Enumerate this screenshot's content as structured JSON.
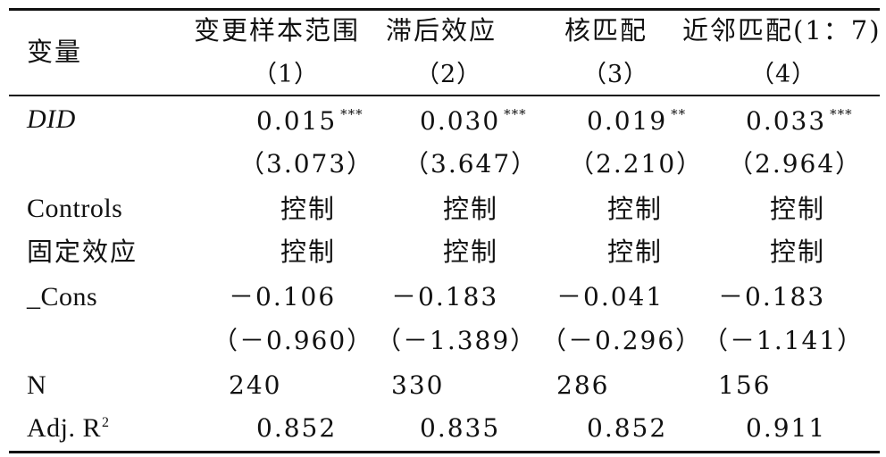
{
  "header": {
    "variable_label": "变量",
    "columns": [
      {
        "title": "变更样本范围",
        "number": "（1）"
      },
      {
        "title": "滞后效应",
        "number": "（2）"
      },
      {
        "title": "核匹配",
        "number": "（3）"
      },
      {
        "title": "近邻匹配(1：7)",
        "number": "（4）"
      }
    ]
  },
  "rows": {
    "did": {
      "label": "DID",
      "coefs": [
        {
          "value": "0.015",
          "stars": "***"
        },
        {
          "value": "0.030",
          "stars": "***"
        },
        {
          "value": "0.019",
          "stars": "**"
        },
        {
          "value": "0.033",
          "stars": "***"
        }
      ],
      "tstats": [
        "（3.073）",
        "（3.647）",
        "（2.210）",
        "（2.964）"
      ]
    },
    "controls": {
      "label": "Controls",
      "values": [
        "控制",
        "控制",
        "控制",
        "控制"
      ]
    },
    "fixed_effects": {
      "label": "固定效应",
      "values": [
        "控制",
        "控制",
        "控制",
        "控制"
      ]
    },
    "cons": {
      "label": "_Cons",
      "coefs": [
        "－0.106",
        "－0.183",
        "－0.041",
        "－0.183"
      ],
      "tstats": [
        "（－0.960）",
        "（－1.389）",
        "（－0.296）",
        "（－1.141）"
      ]
    },
    "n": {
      "label": "N",
      "values": [
        "240",
        "330",
        "286",
        "156"
      ]
    },
    "adj_r2": {
      "label": "Adj. R",
      "label_sup": "2",
      "values": [
        "0.852",
        "0.835",
        "0.852",
        "0.911"
      ]
    }
  }
}
